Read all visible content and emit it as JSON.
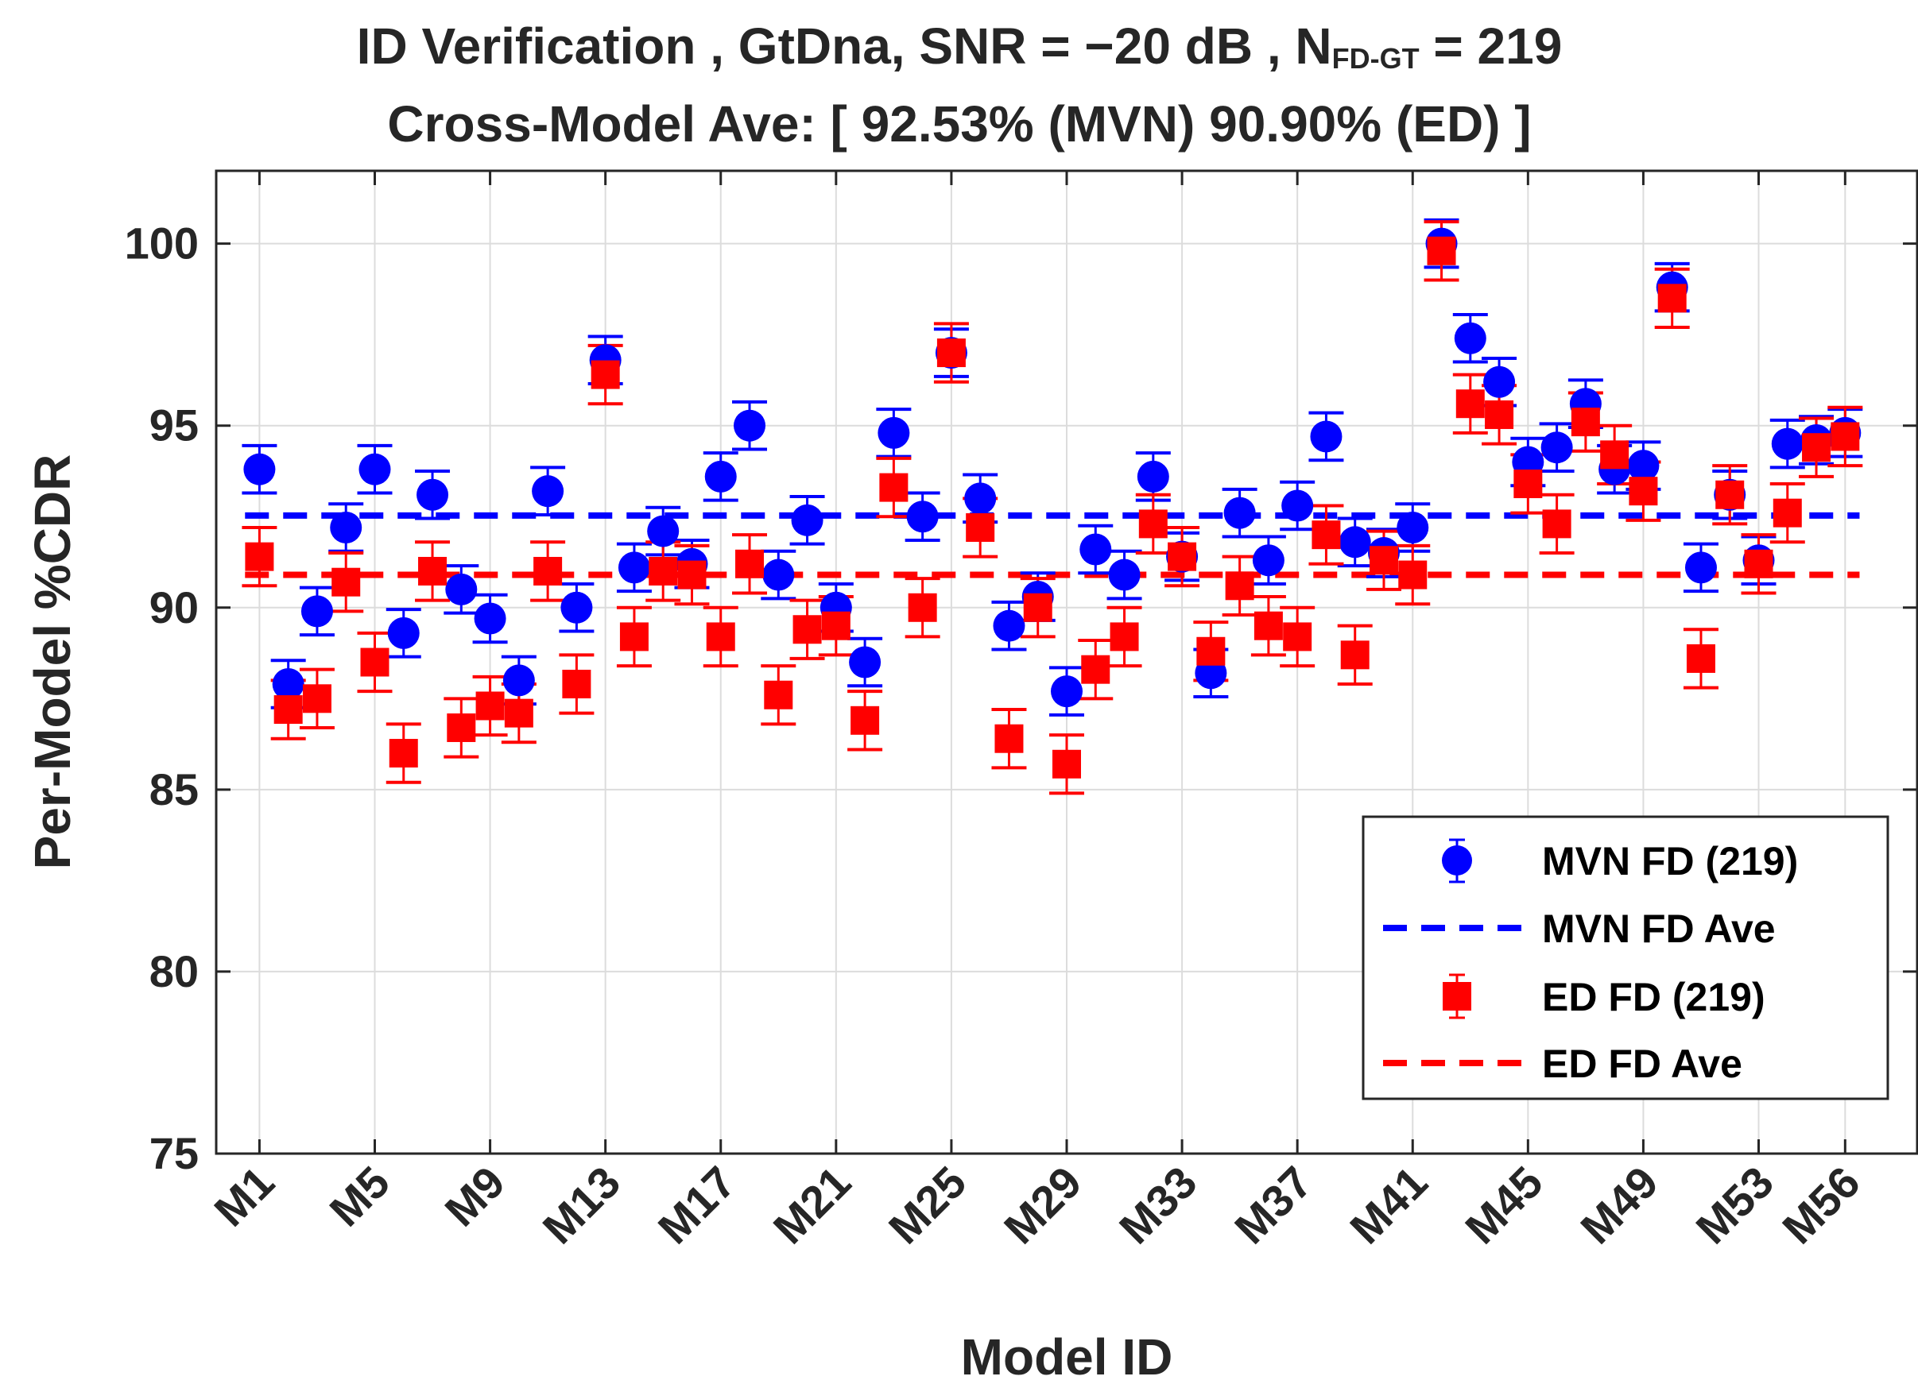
{
  "chart_data": {
    "type": "scatter",
    "title": {
      "line1_prefix": "ID Verification , GtDna, SNR = ",
      "line1_snr": "−20 dB",
      "line1_n": " , N",
      "line1_sub": "FD-GT",
      "line1_suffix": " = 219",
      "line2": "Cross-Model Ave: [ 92.53% (MVN)   90.90% (ED) ]"
    },
    "xlabel": "Model ID",
    "ylabel": "Per-Model %CDR",
    "ylim": [
      75,
      102
    ],
    "yticks": [
      75,
      80,
      85,
      90,
      95,
      100
    ],
    "xlim": [
      -0.5,
      58.5
    ],
    "xtick_positions": [
      1,
      5,
      9,
      13,
      17,
      21,
      25,
      29,
      33,
      37,
      41,
      45,
      49,
      53,
      56
    ],
    "xtick_labels": [
      "M1",
      "M5",
      "M9",
      "M13",
      "M17",
      "M21",
      "M25",
      "M29",
      "M33",
      "M37",
      "M41",
      "M45",
      "M49",
      "M53",
      "M56"
    ],
    "grid": true,
    "series": [
      {
        "name": "MVN FD (219)",
        "color": "#0000ff",
        "marker": "circle",
        "error": 0.65,
        "values": [
          93.8,
          87.9,
          89.9,
          92.2,
          93.8,
          89.3,
          93.1,
          90.5,
          89.7,
          88.0,
          93.2,
          90.0,
          96.8,
          91.1,
          92.1,
          91.2,
          93.6,
          95.0,
          90.9,
          92.4,
          90.0,
          88.5,
          94.8,
          92.5,
          97.0,
          93.0,
          89.5,
          90.3,
          87.7,
          91.6,
          90.9,
          93.6,
          91.4,
          88.2,
          92.6,
          91.3,
          92.8,
          94.7,
          91.8,
          91.5,
          92.2,
          100.0,
          97.4,
          96.2,
          94.0,
          94.4,
          95.6,
          93.8,
          93.9,
          98.8,
          91.1,
          93.1,
          91.3,
          94.5,
          94.6,
          94.8
        ]
      },
      {
        "name": "MVN FD Ave",
        "color": "#0000ff",
        "style": "dashed",
        "value": 92.53
      },
      {
        "name": "ED FD (219)",
        "color": "#ff0000",
        "marker": "square",
        "error": 0.8,
        "values": [
          91.4,
          87.2,
          87.5,
          90.7,
          88.5,
          86.0,
          91.0,
          86.7,
          87.3,
          87.1,
          91.0,
          87.9,
          96.4,
          89.2,
          91.0,
          90.9,
          89.2,
          91.2,
          87.6,
          89.4,
          89.5,
          86.9,
          93.3,
          90.0,
          97.0,
          92.2,
          86.4,
          90.0,
          85.7,
          88.3,
          89.2,
          92.3,
          91.4,
          88.8,
          90.6,
          89.5,
          89.2,
          92.0,
          88.7,
          91.3,
          90.9,
          99.8,
          95.6,
          95.3,
          93.4,
          92.3,
          95.1,
          94.2,
          93.2,
          98.5,
          88.6,
          93.1,
          91.2,
          92.6,
          94.4,
          94.7
        ]
      },
      {
        "name": "ED FD Ave",
        "color": "#ff0000",
        "style": "dashed",
        "value": 90.9
      }
    ],
    "legend_location": "bottom-right"
  }
}
